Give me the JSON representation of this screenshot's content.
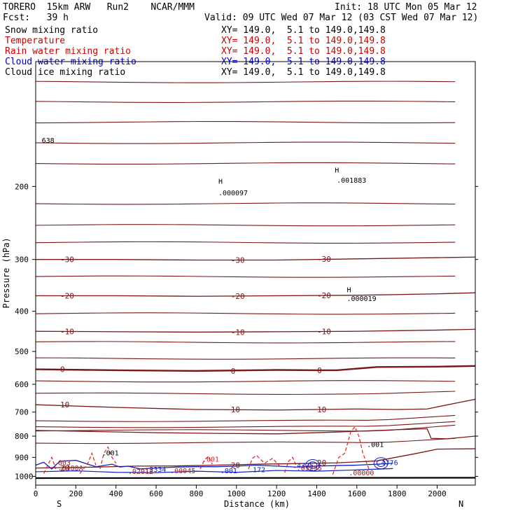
{
  "header": {
    "model": "TORERO  15km ARW   Run2    NCAR/MMM",
    "forecast": "Fcst:   39 h",
    "init": "Init: 18 UTC Mon 05 Mar 12",
    "valid": "Valid: 09 UTC Wed 07 Mar 12 (03 CST Wed 07 Mar 12)"
  },
  "chart_data": {
    "type": "line",
    "title": "",
    "xlabel": "Distance (km)",
    "ylabel": "Pressure (hPa)",
    "xlim": [
      0,
      2190
    ],
    "ylim": [
      1050,
      100
    ],
    "y_scale": "log",
    "x_ticks": [
      0,
      200,
      400,
      600,
      800,
      1000,
      1200,
      1400,
      1600,
      1800,
      2000
    ],
    "y_ticks": [
      200,
      300,
      400,
      500,
      600,
      700,
      800,
      900,
      1000
    ],
    "endpoint_labels": {
      "left": "S",
      "right": "N"
    },
    "fields": [
      {
        "name": "Snow mixing ratio",
        "color": "#000000",
        "xy": "XY= 149.0,  5.1 to 149.0,149.8"
      },
      {
        "name": "Temperature",
        "color": "#cc0000",
        "xy": "XY= 149.0,  5.1 to 149.0,149.8"
      },
      {
        "name": "Rain water mixing ratio",
        "color": "#cc0000",
        "xy": "XY= 149.0,  5.1 to 149.0,149.8"
      },
      {
        "name": "Cloud water mixing ratio",
        "color": "#0000cc",
        "xy": "XY= 149.0,  5.1 to 149.0,149.8"
      },
      {
        "name": "Cloud ice mixing ratio",
        "color": "#000000",
        "xy": "XY= 149.0,  5.1 to 149.0,149.8"
      }
    ],
    "temperature_isotherms": [
      {
        "value": 0,
        "label": "0",
        "points": [
          [
            0,
            552
          ],
          [
            400,
            555
          ],
          [
            800,
            557
          ],
          [
            1200,
            554
          ],
          [
            1400,
            555
          ],
          [
            1500,
            555
          ],
          [
            1600,
            550
          ],
          [
            1700,
            545
          ],
          [
            2000,
            544
          ],
          [
            2190,
            542
          ]
        ]
      },
      {
        "value": -10,
        "label": "-10",
        "points": [
          [
            0,
            447
          ],
          [
            400,
            448
          ],
          [
            800,
            449
          ],
          [
            1200,
            448
          ],
          [
            1600,
            447
          ],
          [
            2000,
            444
          ],
          [
            2190,
            442
          ]
        ]
      },
      {
        "value": -20,
        "label": "-20",
        "points": [
          [
            0,
            367
          ],
          [
            400,
            367
          ],
          [
            800,
            368
          ],
          [
            1200,
            367
          ],
          [
            1600,
            366
          ],
          [
            2000,
            363
          ],
          [
            2190,
            361
          ]
        ]
      },
      {
        "value": -30,
        "label": "-30",
        "points": [
          [
            0,
            300
          ],
          [
            400,
            300
          ],
          [
            800,
            301
          ],
          [
            1200,
            301
          ],
          [
            1600,
            299
          ],
          [
            2000,
            297
          ],
          [
            2190,
            296
          ]
        ]
      },
      {
        "value": 10,
        "label": "10",
        "points": [
          [
            0,
            672
          ],
          [
            400,
            682
          ],
          [
            800,
            690
          ],
          [
            1200,
            692
          ],
          [
            1400,
            690
          ],
          [
            1600,
            688
          ],
          [
            1800,
            690
          ],
          [
            1950,
            688
          ],
          [
            2100,
            665
          ],
          [
            2190,
            652
          ]
        ]
      },
      {
        "value": 20,
        "label": "20",
        "points": [
          [
            0,
            955
          ],
          [
            300,
            950
          ],
          [
            500,
            945
          ],
          [
            700,
            944
          ],
          [
            900,
            940
          ],
          [
            1100,
            935
          ],
          [
            1300,
            932
          ],
          [
            1500,
            928
          ],
          [
            1700,
            918
          ],
          [
            1900,
            880
          ],
          [
            2000,
            860
          ],
          [
            2190,
            858
          ]
        ]
      }
    ],
    "isotherm_values": [
      "-30",
      "-20",
      "-10",
      "0",
      "10",
      "20"
    ],
    "contour_labels": [
      {
        "text": "H",
        "x": 910,
        "p": 197
      },
      {
        "text": ".000097",
        "x": 910,
        "p": 210
      },
      {
        "text": "H",
        "x": 1490,
        "p": 185
      },
      {
        "text": ".001883",
        "x": 1500,
        "p": 196
      },
      {
        "text": "H",
        "x": 1550,
        "p": 360
      },
      {
        "text": ".000019",
        "x": 1550,
        "p": 378
      },
      {
        "text": "638",
        "x": 30,
        "p": 157
      },
      {
        "text": ".001",
        "x": 330,
        "p": 890
      },
      {
        "text": ".001",
        "x": 830,
        "p": 922
      },
      {
        "text": ".001",
        "x": 1650,
        "p": 850
      },
      {
        "text": ".0400A",
        "x": 110,
        "p": 968
      },
      {
        "text": ".02012",
        "x": 460,
        "p": 987
      },
      {
        "text": ".2334",
        "x": 545,
        "p": 975
      },
      {
        "text": ".00045",
        "x": 670,
        "p": 982
      },
      {
        "text": ".001",
        "x": 920,
        "p": 983
      },
      {
        "text": ".172",
        "x": 1060,
        "p": 977
      },
      {
        "text": ".4375",
        "x": 1280,
        "p": 955
      },
      {
        "text": ".03295",
        "x": 1300,
        "p": 968
      },
      {
        "text": ".00000",
        "x": 1560,
        "p": 995
      },
      {
        "text": ".4776",
        "x": 1700,
        "p": 940
      },
      {
        "text": ".003",
        "x": 90,
        "p": 940
      }
    ]
  }
}
